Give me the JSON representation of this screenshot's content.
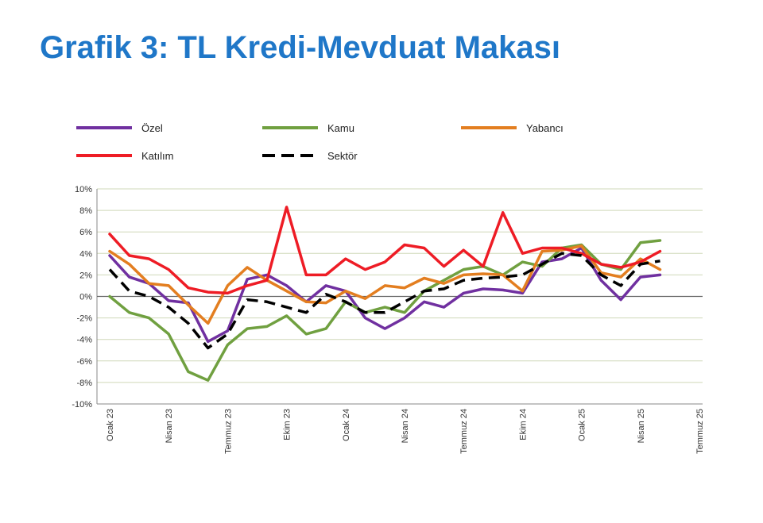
{
  "title": "Grafik 3: TL Kredi-Mevduat Makası",
  "chart_data": {
    "type": "line",
    "ylim": [
      -10,
      10
    ],
    "y_ticks": [
      "10%",
      "8%",
      "6%",
      "4%",
      "2%",
      "0%",
      "-2%",
      "-4%",
      "-6%",
      "-8%",
      "-10%"
    ],
    "y_tick_values": [
      10,
      8,
      6,
      4,
      2,
      0,
      -2,
      -4,
      -6,
      -8,
      -10
    ],
    "x_tick_labels": [
      "Ocak 23",
      "Nisan 23",
      "Temmuz 23",
      "Ekim 23",
      "Ocak 24",
      "Nisan 24",
      "Temmuz 24",
      "Ekim 24",
      "Ocak 25",
      "Nisan 25",
      "Temmuz 25"
    ],
    "x_tick_index": [
      0,
      3,
      6,
      9,
      12,
      15,
      18,
      21,
      24,
      27,
      30
    ],
    "grid": true,
    "legend_position": "top",
    "series": [
      {
        "name": "Özel",
        "color": "#7030a0",
        "dash": false,
        "values": [
          3.8,
          1.8,
          1.2,
          -0.4,
          -0.6,
          -4.2,
          -3.2,
          1.6,
          2.0,
          1.0,
          -0.5,
          1.0,
          0.5,
          -2.0,
          -3.0,
          -2.0,
          -0.5,
          -1.0,
          0.3,
          0.7,
          0.6,
          0.3,
          3.2,
          3.5,
          4.5,
          1.5,
          -0.3,
          1.8,
          2.0
        ]
      },
      {
        "name": "Kamu",
        "color": "#70a040",
        "dash": false,
        "values": [
          0.0,
          -1.5,
          -2.0,
          -3.5,
          -7.0,
          -7.8,
          -4.5,
          -3.0,
          -2.8,
          -1.8,
          -3.5,
          -3.0,
          -0.5,
          -1.5,
          -1.0,
          -1.5,
          0.5,
          1.5,
          2.5,
          2.8,
          2.0,
          3.2,
          2.8,
          4.5,
          4.8,
          3.0,
          2.5,
          5.0,
          5.2
        ]
      },
      {
        "name": "Yabancı",
        "color": "#e37e20",
        "dash": false,
        "values": [
          4.2,
          3.0,
          1.2,
          1.0,
          -0.8,
          -2.5,
          1.0,
          2.7,
          1.5,
          0.5,
          -0.5,
          -0.6,
          0.5,
          -0.2,
          1.0,
          0.8,
          1.7,
          1.2,
          2.0,
          2.1,
          2.0,
          0.5,
          4.2,
          4.3,
          4.7,
          2.2,
          1.8,
          3.5,
          2.5
        ]
      },
      {
        "name": "Katılım",
        "color": "#ee1c25",
        "dash": false,
        "values": [
          5.8,
          3.8,
          3.5,
          2.5,
          0.8,
          0.4,
          0.3,
          1.0,
          1.5,
          8.3,
          2.0,
          2.0,
          3.5,
          2.5,
          3.2,
          4.8,
          4.5,
          2.8,
          4.3,
          2.8,
          7.8,
          4.0,
          4.5,
          4.5,
          4.0,
          3.0,
          2.7,
          3.2,
          4.2
        ]
      },
      {
        "name": "Sektör",
        "color": "#000000",
        "dash": true,
        "values": [
          2.5,
          0.5,
          0.0,
          -1.0,
          -2.5,
          -4.8,
          -3.5,
          -0.3,
          -0.5,
          -1.0,
          -1.5,
          0.2,
          -0.5,
          -1.5,
          -1.5,
          -0.5,
          0.5,
          0.7,
          1.5,
          1.7,
          1.8,
          2.0,
          3.0,
          4.0,
          3.8,
          2.0,
          1.0,
          3.0,
          3.3
        ]
      }
    ]
  }
}
